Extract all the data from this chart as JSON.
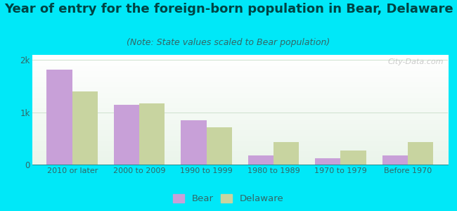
{
  "title": "Year of entry for the foreign-born population in Bear, Delaware",
  "subtitle": "(Note: State values scaled to Bear population)",
  "categories": [
    "2010 or later",
    "2000 to 2009",
    "1990 to 1999",
    "1980 to 1989",
    "1970 to 1979",
    "Before 1970"
  ],
  "bear_values": [
    1820,
    1150,
    850,
    180,
    120,
    175
  ],
  "delaware_values": [
    1400,
    1170,
    720,
    430,
    265,
    430
  ],
  "bear_color": "#c8a0d8",
  "delaware_color": "#c8d4a0",
  "background_outer": "#00e8f8",
  "plot_bg_color": "#e8f5ec",
  "title_fontsize": 13,
  "subtitle_fontsize": 9,
  "ytick_labels": [
    "0",
    "1k",
    "2k"
  ],
  "ytick_values": [
    0,
    1000,
    2000
  ],
  "ylim": [
    0,
    2100
  ],
  "bar_width": 0.38,
  "watermark": "City-Data.com",
  "title_color": "#004444",
  "subtitle_color": "#336666",
  "tick_color": "#336666",
  "grid_color": "#c8ddc8"
}
